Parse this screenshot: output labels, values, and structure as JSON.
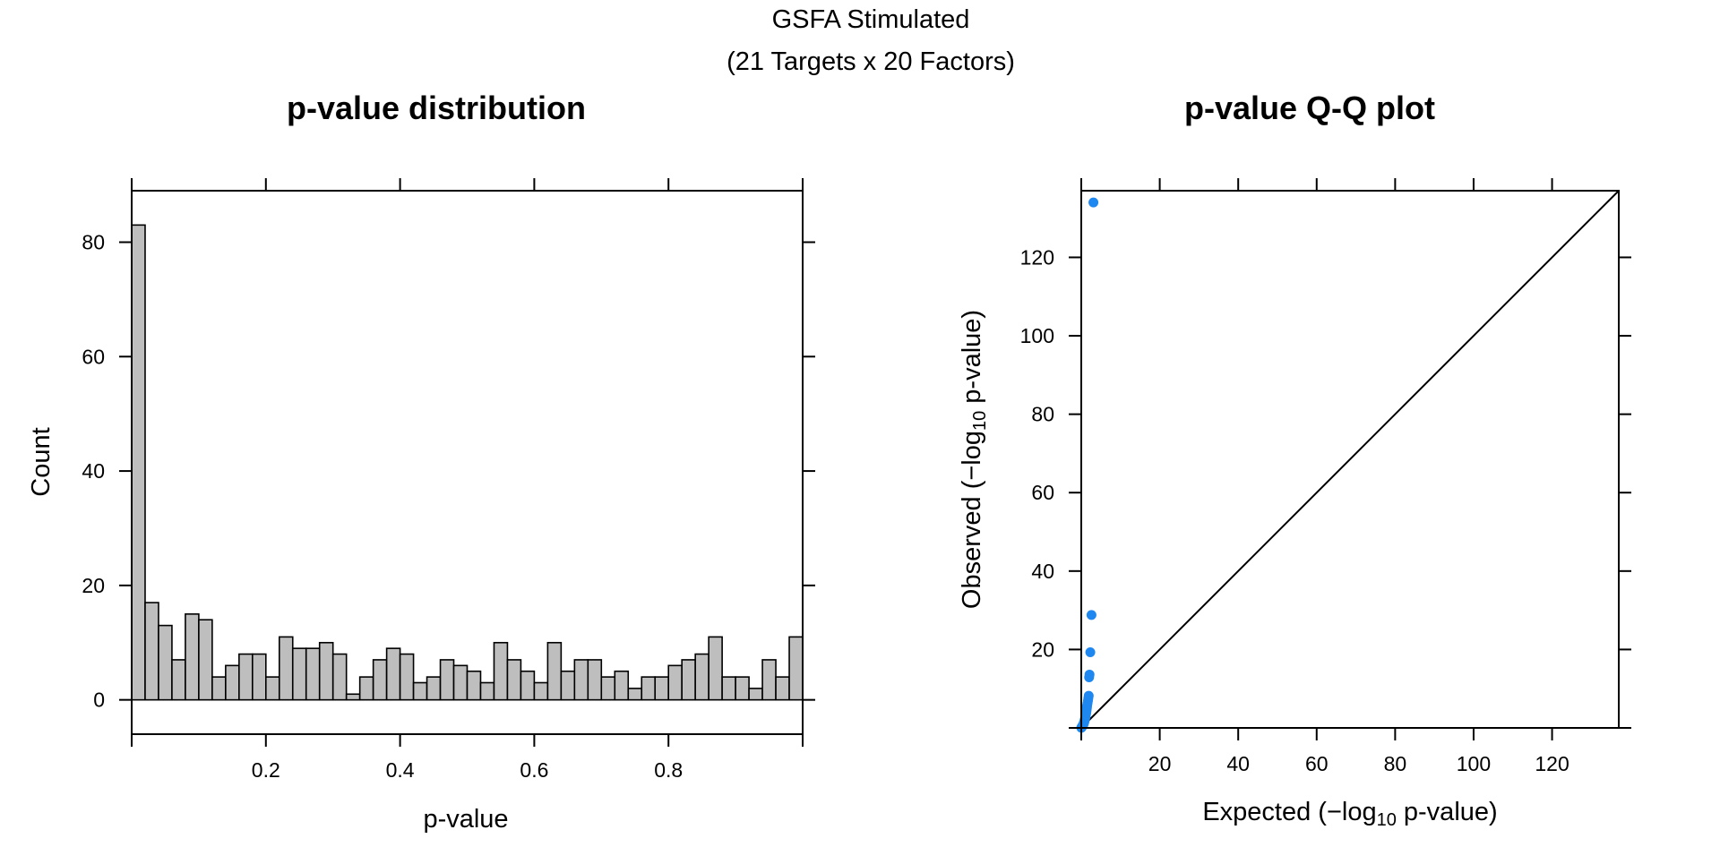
{
  "figure": {
    "title_line1": "GSFA Stimulated",
    "title_line2": "(21 Targets x 20 Factors)"
  },
  "chart_data": [
    {
      "type": "bar",
      "title": "p-value distribution",
      "xlabel": "p-value",
      "ylabel": "Count",
      "xlim": [
        0,
        1
      ],
      "ylim": [
        -6,
        89
      ],
      "bin_width": 0.02,
      "x_ticks": [
        0.2,
        0.4,
        0.6,
        0.8
      ],
      "x_tick_labels": [
        "0.2",
        "0.4",
        "0.6",
        "0.8"
      ],
      "y_ticks": [
        0,
        20,
        40,
        60,
        80
      ],
      "y_tick_labels": [
        "0",
        "20",
        "40",
        "60",
        "80"
      ],
      "values": [
        83,
        17,
        13,
        7,
        15,
        14,
        4,
        6,
        8,
        8,
        4,
        11,
        9,
        9,
        10,
        8,
        1,
        4,
        7,
        9,
        8,
        3,
        4,
        7,
        6,
        5,
        3,
        10,
        7,
        5,
        3,
        10,
        5,
        7,
        7,
        4,
        5,
        2,
        4,
        4,
        6,
        7,
        8,
        11,
        4,
        4,
        2,
        7,
        4,
        11
      ],
      "bar_color": "#bebebe"
    },
    {
      "type": "scatter",
      "title": "p-value Q-Q plot",
      "xlabel_parts": [
        "Expected (−log",
        "10",
        " p-value)"
      ],
      "ylabel_parts": [
        "Observed (−log",
        "10",
        " p-value)"
      ],
      "xlim": [
        0,
        137
      ],
      "ylim": [
        0,
        137
      ],
      "x_ticks": [
        20,
        40,
        60,
        80,
        100,
        120
      ],
      "x_tick_labels": [
        "20",
        "40",
        "60",
        "80",
        "100",
        "120"
      ],
      "y_ticks": [
        20,
        40,
        60,
        80,
        100,
        120
      ],
      "y_tick_labels": [
        "20",
        "40",
        "60",
        "80",
        "100",
        "120"
      ],
      "reference_line": "y = x",
      "point_color": "#1e88f0",
      "points": [
        [
          3.1,
          134.0
        ],
        [
          2.6,
          28.8
        ],
        [
          2.3,
          19.3
        ],
        [
          2.1,
          13.6
        ],
        [
          2.0,
          12.9
        ],
        [
          1.9,
          8.2
        ],
        [
          1.8,
          7.6
        ],
        [
          1.7,
          6.9
        ],
        [
          1.6,
          6.3
        ],
        [
          1.5,
          5.8
        ],
        [
          1.45,
          5.3
        ],
        [
          1.4,
          4.9
        ],
        [
          1.35,
          4.6
        ],
        [
          1.3,
          4.2
        ],
        [
          1.25,
          3.9
        ],
        [
          1.2,
          3.6
        ],
        [
          1.15,
          3.3
        ],
        [
          1.1,
          3.0
        ],
        [
          1.05,
          2.8
        ],
        [
          1.0,
          2.5
        ],
        [
          0.95,
          2.3
        ],
        [
          0.9,
          2.1
        ],
        [
          0.85,
          1.9
        ],
        [
          0.8,
          1.7
        ],
        [
          0.75,
          1.5
        ],
        [
          0.7,
          1.35
        ],
        [
          0.65,
          1.2
        ],
        [
          0.6,
          1.05
        ],
        [
          0.55,
          0.95
        ],
        [
          0.5,
          0.85
        ],
        [
          0.45,
          0.75
        ],
        [
          0.4,
          0.65
        ],
        [
          0.35,
          0.55
        ],
        [
          0.3,
          0.45
        ],
        [
          0.25,
          0.38
        ],
        [
          0.2,
          0.3
        ],
        [
          0.15,
          0.22
        ],
        [
          0.1,
          0.15
        ],
        [
          0.05,
          0.08
        ],
        [
          0.02,
          0.03
        ]
      ]
    }
  ]
}
